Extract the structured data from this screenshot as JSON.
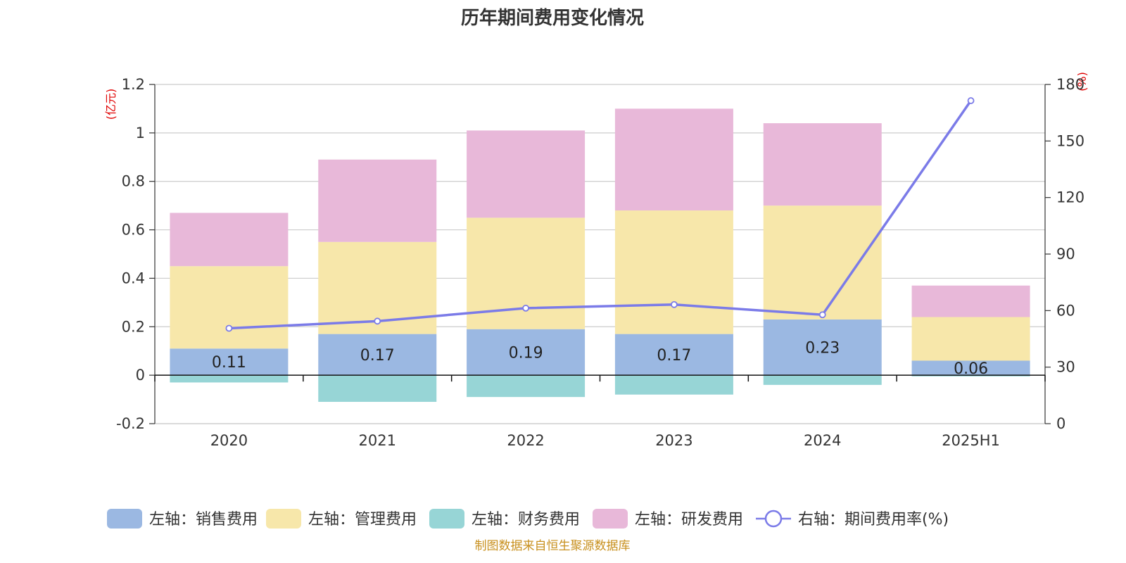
{
  "title": "历年期间费用变化情况",
  "source": "制图数据来自恒生聚源数据库",
  "left_unit": "(亿元)",
  "right_unit": "(%)",
  "colors": {
    "sales": "#9bb8e2",
    "admin": "#f7e7aa",
    "finance": "#97d5d6",
    "rnd": "#e8b8d9",
    "rate": "#7b7be8"
  },
  "chart_data": {
    "type": "bar",
    "categories": [
      "2020",
      "2021",
      "2022",
      "2023",
      "2024",
      "2025H1"
    ],
    "stacked": true,
    "left_axis": {
      "ylim": [
        -0.2,
        1.2
      ],
      "ticks": [
        "-0.2",
        "0",
        "0.2",
        "0.4",
        "0.6",
        "0.8",
        "1",
        "1.2"
      ]
    },
    "right_axis": {
      "ylim": [
        0,
        180
      ],
      "ticks": [
        "0",
        "30",
        "60",
        "90",
        "120",
        "150",
        "180"
      ]
    },
    "series": [
      {
        "key": "sales",
        "name": "左轴：销售费用",
        "axis": "left",
        "values": [
          0.11,
          0.17,
          0.19,
          0.17,
          0.23,
          0.06
        ],
        "labels": [
          "0.11",
          "0.17",
          "0.19",
          "0.17",
          "0.23",
          "0.06"
        ]
      },
      {
        "key": "admin",
        "name": "左轴：管理费用",
        "axis": "left",
        "values": [
          0.34,
          0.38,
          0.46,
          0.51,
          0.47,
          0.18
        ]
      },
      {
        "key": "finance",
        "name": "左轴：财务费用",
        "axis": "left",
        "values": [
          -0.03,
          -0.11,
          -0.09,
          -0.08,
          -0.04,
          -0.005
        ]
      },
      {
        "key": "rnd",
        "name": "左轴：研发费用",
        "axis": "left",
        "values": [
          0.22,
          0.34,
          0.36,
          0.42,
          0.34,
          0.13
        ]
      },
      {
        "key": "rate",
        "name": "右轴：期间费用率(%)",
        "axis": "right",
        "type": "line",
        "values": [
          50.6,
          54.4,
          61.3,
          63.2,
          57.8,
          171.4
        ]
      }
    ],
    "legend_position": "bottom",
    "grid": true
  }
}
